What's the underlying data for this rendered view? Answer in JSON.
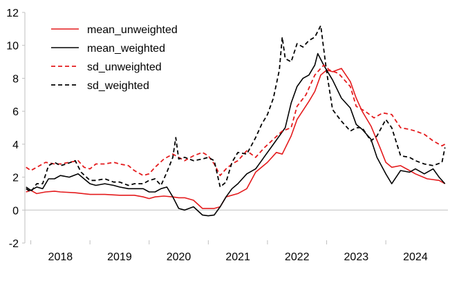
{
  "chart_data": {
    "type": "line",
    "title": "",
    "xlabel": "",
    "ylabel": "",
    "ylim": [
      -2,
      12
    ],
    "xlim": [
      2017.4,
      2024.55
    ],
    "y_ticks": [
      -2,
      0,
      2,
      4,
      6,
      8,
      10,
      12
    ],
    "y_tick_labels": [
      "-2",
      "0",
      "2",
      "4",
      "6",
      "8",
      "10",
      "12"
    ],
    "x_ticks": [
      2018,
      2019,
      2020,
      2021,
      2022,
      2023,
      2024
    ],
    "x_tick_labels": [
      "2018",
      "2019",
      "2020",
      "2021",
      "2022",
      "2023",
      "2024"
    ],
    "grid": false,
    "legend_position": "top-left",
    "series": [
      {
        "name": "mean_unweighted",
        "color": "#e41a1c",
        "dash": "solid",
        "x": [
          2017.42,
          2017.5,
          2017.6,
          2017.75,
          2017.9,
          2018.0,
          2018.25,
          2018.5,
          2018.75,
          2019.0,
          2019.25,
          2019.4,
          2019.5,
          2019.6,
          2019.75,
          2019.9,
          2020.0,
          2020.1,
          2020.25,
          2020.4,
          2020.5,
          2020.6,
          2020.7,
          2020.8,
          2021.0,
          2021.15,
          2021.3,
          2021.5,
          2021.65,
          2021.75,
          2021.9,
          2022.0,
          2022.2,
          2022.3,
          2022.4,
          2022.5,
          2022.6,
          2022.75,
          2022.9,
          2023.0,
          2023.1,
          2023.25,
          2023.4,
          2023.5,
          2023.6,
          2023.75,
          2023.9,
          2024.0,
          2024.2,
          2024.4,
          2024.5
        ],
        "y": [
          1.1,
          1.2,
          1.0,
          1.1,
          1.15,
          1.1,
          1.05,
          0.95,
          0.95,
          0.9,
          0.9,
          0.8,
          0.7,
          0.8,
          0.85,
          0.8,
          0.75,
          0.75,
          0.6,
          0.1,
          0.1,
          0.1,
          0.2,
          0.8,
          1.0,
          1.3,
          2.3,
          2.9,
          3.5,
          3.4,
          4.5,
          5.5,
          6.6,
          7.2,
          8.2,
          8.5,
          8.4,
          8.6,
          7.8,
          6.8,
          6.0,
          5.1,
          3.8,
          2.9,
          2.6,
          2.7,
          2.4,
          2.2,
          1.9,
          1.8,
          1.6
        ]
      },
      {
        "name": "mean_weighted",
        "color": "#000000",
        "dash": "solid",
        "x": [
          2017.42,
          2017.5,
          2017.6,
          2017.7,
          2017.8,
          2017.9,
          2018.0,
          2018.15,
          2018.3,
          2018.4,
          2018.5,
          2018.6,
          2018.75,
          2018.9,
          2019.0,
          2019.15,
          2019.25,
          2019.4,
          2019.5,
          2019.6,
          2019.7,
          2019.8,
          2019.9,
          2020.0,
          2020.1,
          2020.25,
          2020.4,
          2020.5,
          2020.6,
          2020.7,
          2020.8,
          2020.9,
          2021.0,
          2021.15,
          2021.3,
          2021.4,
          2021.5,
          2021.6,
          2021.7,
          2021.8,
          2021.9,
          2022.0,
          2022.1,
          2022.2,
          2022.3,
          2022.35,
          2022.45,
          2022.5,
          2022.6,
          2022.75,
          2022.9,
          2023.0,
          2023.1,
          2023.25,
          2023.35,
          2023.5,
          2023.6,
          2023.75,
          2023.9,
          2024.0,
          2024.15,
          2024.3,
          2024.4,
          2024.5
        ],
        "y": [
          1.4,
          1.2,
          1.4,
          1.3,
          1.9,
          1.9,
          2.1,
          2.0,
          2.2,
          1.9,
          1.6,
          1.5,
          1.6,
          1.5,
          1.4,
          1.3,
          1.3,
          1.3,
          1.1,
          1.1,
          1.3,
          1.4,
          0.8,
          0.1,
          0.0,
          0.2,
          -0.3,
          -0.35,
          -0.3,
          0.2,
          0.8,
          1.3,
          1.6,
          2.2,
          2.5,
          3.0,
          3.5,
          4.0,
          4.5,
          5.0,
          6.5,
          7.5,
          8.0,
          8.2,
          8.8,
          9.5,
          8.8,
          8.5,
          7.9,
          6.8,
          6.2,
          5.2,
          4.9,
          4.3,
          3.2,
          2.2,
          1.6,
          2.4,
          2.3,
          2.5,
          2.2,
          2.5,
          2.0,
          1.6
        ]
      },
      {
        "name": "sd_unweighted",
        "color": "#e41a1c",
        "dash": "dashed",
        "x": [
          2017.42,
          2017.5,
          2017.6,
          2017.75,
          2017.9,
          2018.0,
          2018.15,
          2018.3,
          2018.4,
          2018.5,
          2018.6,
          2018.75,
          2018.9,
          2019.0,
          2019.15,
          2019.25,
          2019.4,
          2019.5,
          2019.6,
          2019.75,
          2019.9,
          2020.0,
          2020.1,
          2020.25,
          2020.4,
          2020.5,
          2020.6,
          2020.7,
          2020.8,
          2020.9,
          2021.0,
          2021.15,
          2021.3,
          2021.45,
          2021.6,
          2021.75,
          2021.9,
          2022.0,
          2022.15,
          2022.3,
          2022.45,
          2022.55,
          2022.7,
          2022.9,
          2023.0,
          2023.15,
          2023.3,
          2023.45,
          2023.6,
          2023.75,
          2023.9,
          2024.0,
          2024.15,
          2024.3,
          2024.45,
          2024.5
        ],
        "y": [
          2.6,
          2.4,
          2.6,
          2.9,
          2.8,
          2.8,
          2.9,
          3.0,
          2.6,
          2.5,
          2.8,
          2.8,
          2.9,
          2.8,
          2.7,
          2.4,
          2.1,
          2.2,
          2.6,
          3.1,
          3.4,
          3.2,
          3.0,
          3.3,
          3.5,
          3.3,
          2.8,
          2.1,
          2.5,
          2.8,
          3.0,
          3.6,
          3.2,
          3.8,
          4.3,
          4.8,
          5.0,
          6.3,
          7.0,
          8.2,
          8.8,
          8.5,
          8.3,
          7.5,
          6.3,
          6.0,
          5.6,
          5.9,
          5.8,
          5.0,
          4.9,
          4.8,
          4.6,
          4.2,
          3.9,
          4.0
        ]
      },
      {
        "name": "sd_weighted",
        "color": "#000000",
        "dash": "dashed",
        "x": [
          2017.42,
          2017.5,
          2017.6,
          2017.7,
          2017.8,
          2017.9,
          2018.0,
          2018.1,
          2018.25,
          2018.35,
          2018.5,
          2018.6,
          2018.75,
          2018.9,
          2019.0,
          2019.15,
          2019.25,
          2019.4,
          2019.5,
          2019.6,
          2019.7,
          2019.8,
          2019.9,
          2019.95,
          2020.0,
          2020.1,
          2020.25,
          2020.4,
          2020.5,
          2020.6,
          2020.7,
          2020.8,
          2020.9,
          2021.0,
          2021.15,
          2021.3,
          2021.4,
          2021.5,
          2021.6,
          2021.7,
          2021.75,
          2021.8,
          2021.9,
          2022.0,
          2022.1,
          2022.2,
          2022.3,
          2022.4,
          2022.5,
          2022.6,
          2022.75,
          2022.9,
          2023.0,
          2023.1,
          2023.25,
          2023.35,
          2023.5,
          2023.6,
          2023.75,
          2023.9,
          2024.0,
          2024.15,
          2024.3,
          2024.45,
          2024.5
        ],
        "y": [
          1.3,
          1.1,
          1.6,
          1.6,
          2.7,
          2.9,
          2.7,
          2.8,
          3.0,
          2.3,
          1.8,
          1.8,
          1.9,
          1.7,
          1.7,
          1.5,
          1.6,
          1.6,
          1.8,
          1.9,
          1.5,
          2.3,
          3.2,
          4.4,
          3.1,
          3.2,
          3.0,
          3.1,
          3.2,
          3.0,
          1.4,
          1.7,
          2.9,
          3.5,
          3.4,
          4.4,
          5.2,
          5.8,
          6.8,
          8.5,
          10.5,
          9.2,
          9.0,
          10.1,
          9.9,
          10.3,
          10.5,
          11.2,
          8.4,
          6.1,
          5.4,
          4.8,
          5.0,
          5.0,
          4.2,
          4.5,
          5.5,
          5.0,
          3.3,
          3.2,
          3.0,
          2.8,
          2.7,
          2.9,
          3.8
        ]
      }
    ]
  }
}
